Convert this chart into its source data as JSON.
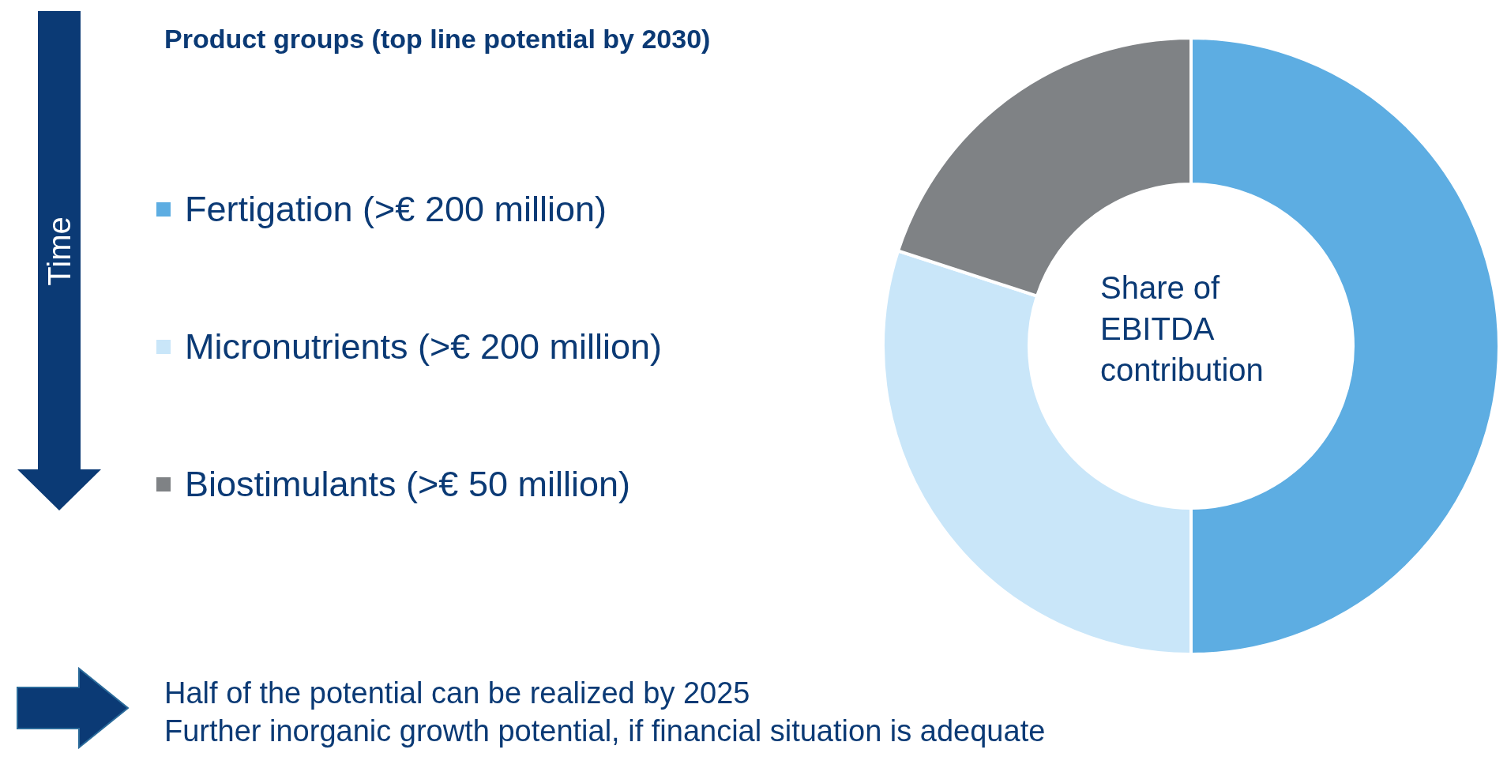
{
  "chart_data": {
    "type": "donut",
    "title": "Product groups (top line potential by 2030)",
    "categories": [
      "Fertigation (>€ 200 million)",
      "Micronutrients (>€ 200 million)",
      "Biostimulants (>€ 50 million)"
    ],
    "values": [
      50,
      30,
      20
    ],
    "colors": [
      "#5dade2",
      "#c9e6f9",
      "#7f8285"
    ],
    "legend": "left",
    "annotations": [
      "Time",
      "Share of EBITDA contribution",
      "Half of the potential can be realized by 2025",
      "Further inorganic growth potential, if financial situation is adequate"
    ]
  }
}
